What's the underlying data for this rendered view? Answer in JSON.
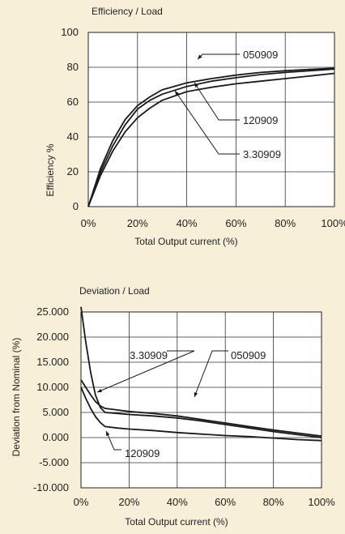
{
  "chart_data": [
    {
      "type": "line",
      "title": "Efficiency / Load",
      "xlabel": "Total Output current (%)",
      "ylabel": "Efficiency %",
      "xlim": [
        0,
        100
      ],
      "ylim": [
        0,
        100
      ],
      "x_ticks": [
        0,
        20,
        40,
        60,
        80,
        100
      ],
      "x_tick_labels": [
        "0%",
        "20%",
        "40%",
        "60%",
        "80%",
        "100%"
      ],
      "y_ticks": [
        0,
        20,
        40,
        60,
        80,
        100
      ],
      "y_tick_labels": [
        "0",
        "20",
        "40",
        "60",
        "80",
        "100"
      ],
      "grid": true,
      "series": [
        {
          "name": "050909",
          "x": [
            0,
            5,
            10,
            15,
            20,
            25,
            30,
            40,
            50,
            60,
            70,
            80,
            90,
            100
          ],
          "y": [
            0,
            22,
            38,
            50,
            58,
            63,
            67,
            71,
            73.5,
            75.5,
            77,
            78,
            78.8,
            79.5
          ]
        },
        {
          "name": "120909",
          "x": [
            0,
            5,
            10,
            15,
            20,
            25,
            30,
            40,
            50,
            60,
            70,
            80,
            90,
            100
          ],
          "y": [
            0,
            20,
            35,
            47,
            56,
            61,
            64.5,
            69,
            72,
            74,
            75.8,
            77,
            78,
            79
          ]
        },
        {
          "name": "3.30909",
          "x": [
            0,
            5,
            10,
            15,
            20,
            25,
            30,
            40,
            50,
            60,
            70,
            80,
            90,
            100
          ],
          "y": [
            0,
            18,
            32,
            43,
            51,
            56.5,
            61,
            66,
            68.5,
            70.5,
            72,
            73.5,
            75,
            76.5
          ]
        }
      ],
      "annotations": [
        {
          "label": "050909",
          "series": "050909",
          "at_x": 45
        },
        {
          "label": "120909",
          "series": "120909",
          "at_x": 42
        },
        {
          "label": "3.30909",
          "series": "3.30909",
          "at_x": 30
        }
      ]
    },
    {
      "type": "line",
      "title": "Deviation / Load",
      "xlabel": "Total Output current (%)",
      "ylabel": "Deviation from Nominal (%)",
      "xlim": [
        0,
        100
      ],
      "ylim": [
        -10,
        25
      ],
      "x_ticks": [
        0,
        20,
        40,
        60,
        80,
        100
      ],
      "x_tick_labels": [
        "0%",
        "20%",
        "40%",
        "60%",
        "80%",
        "100%"
      ],
      "y_ticks": [
        -10,
        -5,
        0,
        5,
        10,
        15,
        20,
        25
      ],
      "y_tick_labels": [
        "-10.000",
        "-5.000",
        "0.000",
        "5.000",
        "10.000",
        "15.000",
        "20.000",
        "25.000"
      ],
      "grid": true,
      "series": [
        {
          "name": "050909",
          "x": [
            0,
            2,
            4,
            6,
            8,
            10,
            15,
            20,
            30,
            40,
            50,
            60,
            70,
            80,
            90,
            100
          ],
          "y": [
            11.5,
            10,
            8.5,
            7.2,
            6.3,
            5.8,
            5.5,
            5.2,
            4.8,
            4.3,
            3.6,
            2.9,
            2.2,
            1.5,
            0.9,
            0.3
          ]
        },
        {
          "name": "3.30909",
          "x": [
            0,
            2,
            4,
            6,
            8,
            10,
            15,
            20,
            30,
            40,
            50,
            60,
            70,
            80,
            90,
            100
          ],
          "y": [
            26,
            19,
            13,
            8.5,
            6.0,
            5.0,
            4.8,
            4.6,
            4.3,
            3.9,
            3.3,
            2.6,
            1.9,
            1.2,
            0.6,
            0.0
          ]
        },
        {
          "name": "120909",
          "x": [
            0,
            2,
            4,
            6,
            8,
            10,
            15,
            20,
            30,
            40,
            50,
            60,
            70,
            80,
            90,
            100
          ],
          "y": [
            10,
            7.8,
            5.8,
            4.2,
            3.0,
            2.2,
            1.9,
            1.7,
            1.4,
            1.0,
            0.7,
            0.4,
            0.2,
            -0.1,
            -0.4,
            -0.6
          ]
        }
      ],
      "annotations": [
        {
          "label": "3.30909",
          "series": "3.30909",
          "at_x": 8
        },
        {
          "label": "050909",
          "series": "050909",
          "at_x": 47
        },
        {
          "label": "120909",
          "series": "120909",
          "at_x": 12
        }
      ]
    }
  ]
}
